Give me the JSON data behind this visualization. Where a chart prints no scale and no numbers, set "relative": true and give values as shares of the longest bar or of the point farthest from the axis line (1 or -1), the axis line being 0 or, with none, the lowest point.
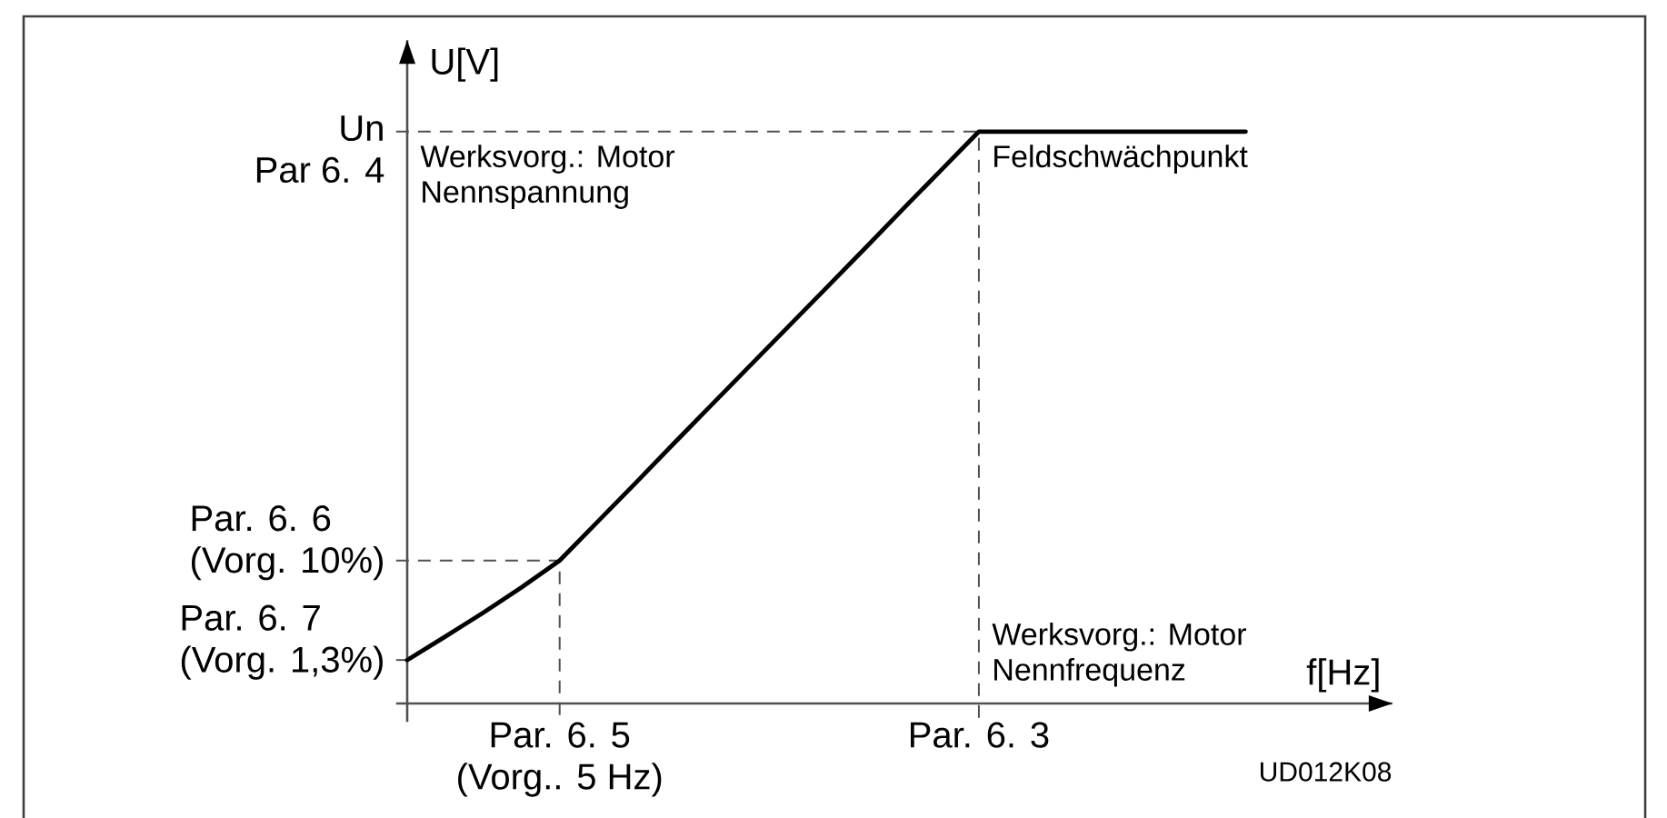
{
  "chart_data": {
    "type": "line",
    "relative": true,
    "xlabel": "f[Hz]",
    "ylabel": "U[V]",
    "categories": [
      null,
      null,
      null,
      null,
      "Par. 6. 5\n(Vorg.. 5 Hz)",
      null,
      null,
      null,
      null,
      null,
      null,
      null,
      null,
      null,
      null,
      "Par. 6. 3",
      null,
      null,
      null,
      null,
      null,
      null,
      null
    ],
    "values": [
      0.076,
      0.117,
      0.159,
      0.203,
      0.25,
      0.318,
      0.386,
      0.455,
      0.523,
      0.591,
      0.659,
      0.727,
      0.795,
      0.864,
      0.932,
      1,
      1,
      1,
      1,
      1,
      1,
      1,
      1
    ],
    "color": "#000000",
    "ref_lines": [
      {
        "axis": "y",
        "value": 1,
        "label": "Un\nPar 6. 4",
        "line_style": "dashed"
      },
      {
        "axis": "y",
        "value": 0.25,
        "label": "Par. 6. 6\n(Vorg. 10%)",
        "line_style": "dashed"
      },
      {
        "axis": "y",
        "value": 0.076,
        "label": "Par. 6. 7\n(Vorg. 1,3%)",
        "line_style": "dashed"
      }
    ],
    "annotations": [
      {
        "text": "Werksvorg.: Motor\nNennspannung",
        "y": 1
      },
      {
        "text": "Feldschwächpunkt",
        "x": "Par. 6. 3",
        "y": 1
      },
      {
        "text": "Werksvorg.: Motor\nNennfrequenz",
        "x": "Par. 6. 3"
      },
      "UD012K08"
    ]
  }
}
